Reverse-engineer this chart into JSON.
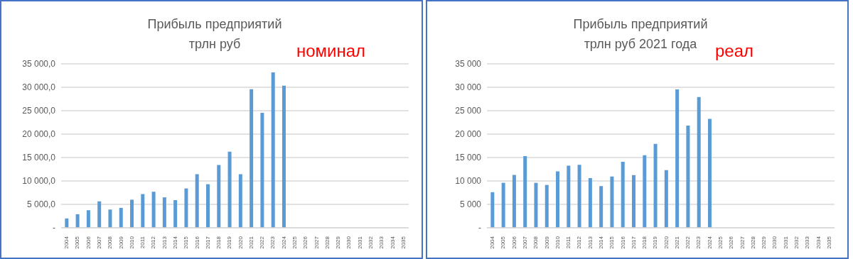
{
  "chart_data": [
    {
      "type": "bar",
      "title": "Прибыль предприятий\nтрлн руб",
      "annotations": [
        "номинал"
      ],
      "categories": [
        "2004",
        "2005",
        "2006",
        "2007",
        "2008",
        "2009",
        "2010",
        "2011",
        "2012",
        "2013",
        "2014",
        "2015",
        "2016",
        "2017",
        "2018",
        "2019",
        "2020",
        "2021",
        "2022",
        "2023",
        "2024",
        "2025",
        "2026",
        "2027",
        "2028",
        "2029",
        "2030",
        "2031",
        "2032",
        "2033",
        "2034",
        "2035"
      ],
      "values": [
        2000,
        2900,
        3750,
        5650,
        3900,
        4250,
        6000,
        7200,
        7700,
        6500,
        5900,
        8400,
        11450,
        9300,
        13400,
        16250,
        11450,
        29600,
        24550,
        33200,
        30350,
        null,
        null,
        null,
        null,
        null,
        null,
        null,
        null,
        null,
        null,
        null
      ],
      "color": "#5b9bd5",
      "ylim": [
        0,
        35000
      ],
      "yticks": [
        {
          "value": 0,
          "label": "-"
        },
        {
          "value": 5000,
          "label": "5 000,0"
        },
        {
          "value": 10000,
          "label": "10 000,0"
        },
        {
          "value": 15000,
          "label": "15 000,0"
        },
        {
          "value": 20000,
          "label": "20 000,0"
        },
        {
          "value": 25000,
          "label": "25 000,0"
        },
        {
          "value": 30000,
          "label": "30 000,0"
        },
        {
          "value": 35000,
          "label": "35 000,0"
        }
      ],
      "grid": "y",
      "legend": false
    },
    {
      "type": "bar",
      "title": "Прибыль предприятий\nтрлн руб 2021 года",
      "annotations": [
        "реал"
      ],
      "categories": [
        "2004",
        "2005",
        "2006",
        "2007",
        "2008",
        "2009",
        "2010",
        "2011",
        "2012",
        "2013",
        "2014",
        "2015",
        "2016",
        "2017",
        "2018",
        "2019",
        "2020",
        "2021",
        "2022",
        "2023",
        "2024",
        "2025",
        "2026",
        "2027",
        "2028",
        "2029",
        "2030",
        "2031",
        "2032",
        "2033",
        "2034",
        "2035"
      ],
      "values": [
        7600,
        9600,
        11300,
        15300,
        9600,
        9150,
        12050,
        13250,
        13450,
        10600,
        8900,
        10950,
        14100,
        11250,
        15500,
        17900,
        12300,
        29550,
        21800,
        27900,
        23250,
        null,
        null,
        null,
        null,
        null,
        null,
        null,
        null,
        null,
        null,
        null
      ],
      "color": "#5b9bd5",
      "ylim": [
        0,
        35000
      ],
      "yticks": [
        {
          "value": 0,
          "label": "-"
        },
        {
          "value": 5000,
          "label": "5 000"
        },
        {
          "value": 10000,
          "label": "10 000"
        },
        {
          "value": 15000,
          "label": "15 000"
        },
        {
          "value": 20000,
          "label": "20 000"
        },
        {
          "value": 25000,
          "label": "25 000"
        },
        {
          "value": 30000,
          "label": "30 000"
        },
        {
          "value": 35000,
          "label": "35 000"
        }
      ],
      "grid": "y",
      "legend": false
    }
  ]
}
